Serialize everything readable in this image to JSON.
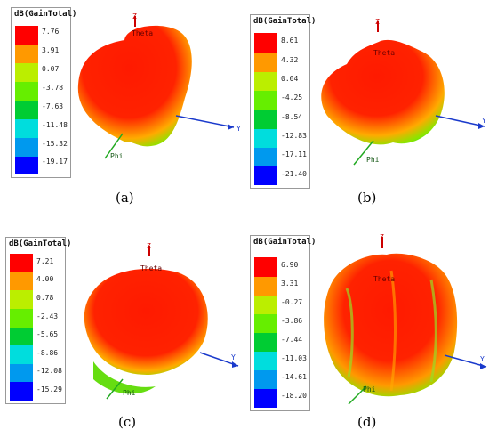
{
  "panels": [
    {
      "caption": "(a)",
      "legend": {
        "title": "dB(GainTotal)",
        "values": [
          "7.76",
          "3.91",
          "0.07",
          "-3.78",
          "-7.63",
          "-11.48",
          "-15.32",
          "-19.17"
        ]
      },
      "axes": {
        "z": "Z",
        "y": "Y",
        "phi": "Phi",
        "theta": "Theta"
      }
    },
    {
      "caption": "(b)",
      "legend": {
        "title": "dB(GainTotal)",
        "values": [
          "8.61",
          "4.32",
          "0.04",
          "-4.25",
          "-8.54",
          "-12.83",
          "-17.11",
          "-21.40"
        ]
      },
      "axes": {
        "z": "Z",
        "y": "Y",
        "phi": "Phi",
        "theta": "Theta"
      }
    },
    {
      "caption": "(c)",
      "legend": {
        "title": "dB(GainTotal)",
        "values": [
          "7.21",
          "4.00",
          "0.78",
          "-2.43",
          "-5.65",
          "-8.86",
          "-12.08",
          "-15.29"
        ]
      },
      "axes": {
        "z": "Z",
        "y": "Y",
        "phi": "Phi",
        "theta": "Theta"
      }
    },
    {
      "caption": "(d)",
      "legend": {
        "title": "dB(GainTotal)",
        "values": [
          "6.90",
          "3.31",
          "-0.27",
          "-3.86",
          "-7.44",
          "-11.03",
          "-14.61",
          "-18.20"
        ]
      },
      "axes": {
        "z": "Z",
        "y": "Y",
        "phi": "Phi",
        "theta": "Theta"
      }
    }
  ],
  "colors": {
    "scale": [
      "#ff0000",
      "#ff9900",
      "#bbee00",
      "#66ee00",
      "#00cc33",
      "#00dddd",
      "#0099ee",
      "#0000ff"
    ],
    "y_axis": "#1a3acc",
    "x_axis": "#22aa22",
    "z_axis": "#cc0000"
  }
}
